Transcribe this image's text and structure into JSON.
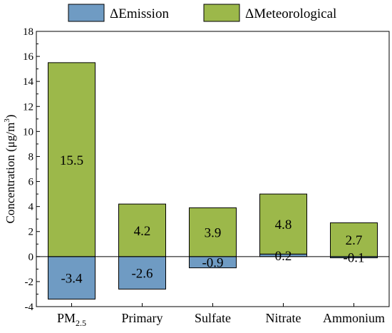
{
  "chart_data": {
    "type": "bar",
    "stacked": true,
    "categories": [
      "PM",
      "Primary",
      "Sulfate",
      "Nitrate",
      "Ammonium"
    ],
    "category_subscripts": [
      "2.5",
      "",
      "",
      "",
      ""
    ],
    "series": [
      {
        "name": "ΔEmission",
        "color": "#6f9bc3",
        "values": [
          -3.4,
          -2.6,
          -0.9,
          0.2,
          -0.1
        ],
        "labels": [
          "-3.4",
          "-2.6",
          "-0.9",
          "0.2",
          "-0.1"
        ]
      },
      {
        "name": "ΔMeteorological",
        "color": "#9cb84a",
        "values": [
          15.5,
          4.2,
          3.9,
          4.8,
          2.7
        ],
        "labels": [
          "15.5",
          "4.2",
          "3.9",
          "4.8",
          "2.7"
        ]
      }
    ],
    "ylabel": "Concentration (μg/m",
    "ylabel_superscript": "3",
    "ylabel_suffix": ")",
    "ylim": [
      -4,
      18
    ],
    "yticks": [
      -4,
      -2,
      0,
      2,
      4,
      6,
      8,
      10,
      12,
      14,
      16,
      18
    ],
    "ytick_labels": [
      "-4",
      "-2",
      "0",
      "2",
      "4",
      "6",
      "8",
      "10",
      "12",
      "14",
      "16",
      "18"
    ],
    "legend_position": "top",
    "grid": false
  }
}
